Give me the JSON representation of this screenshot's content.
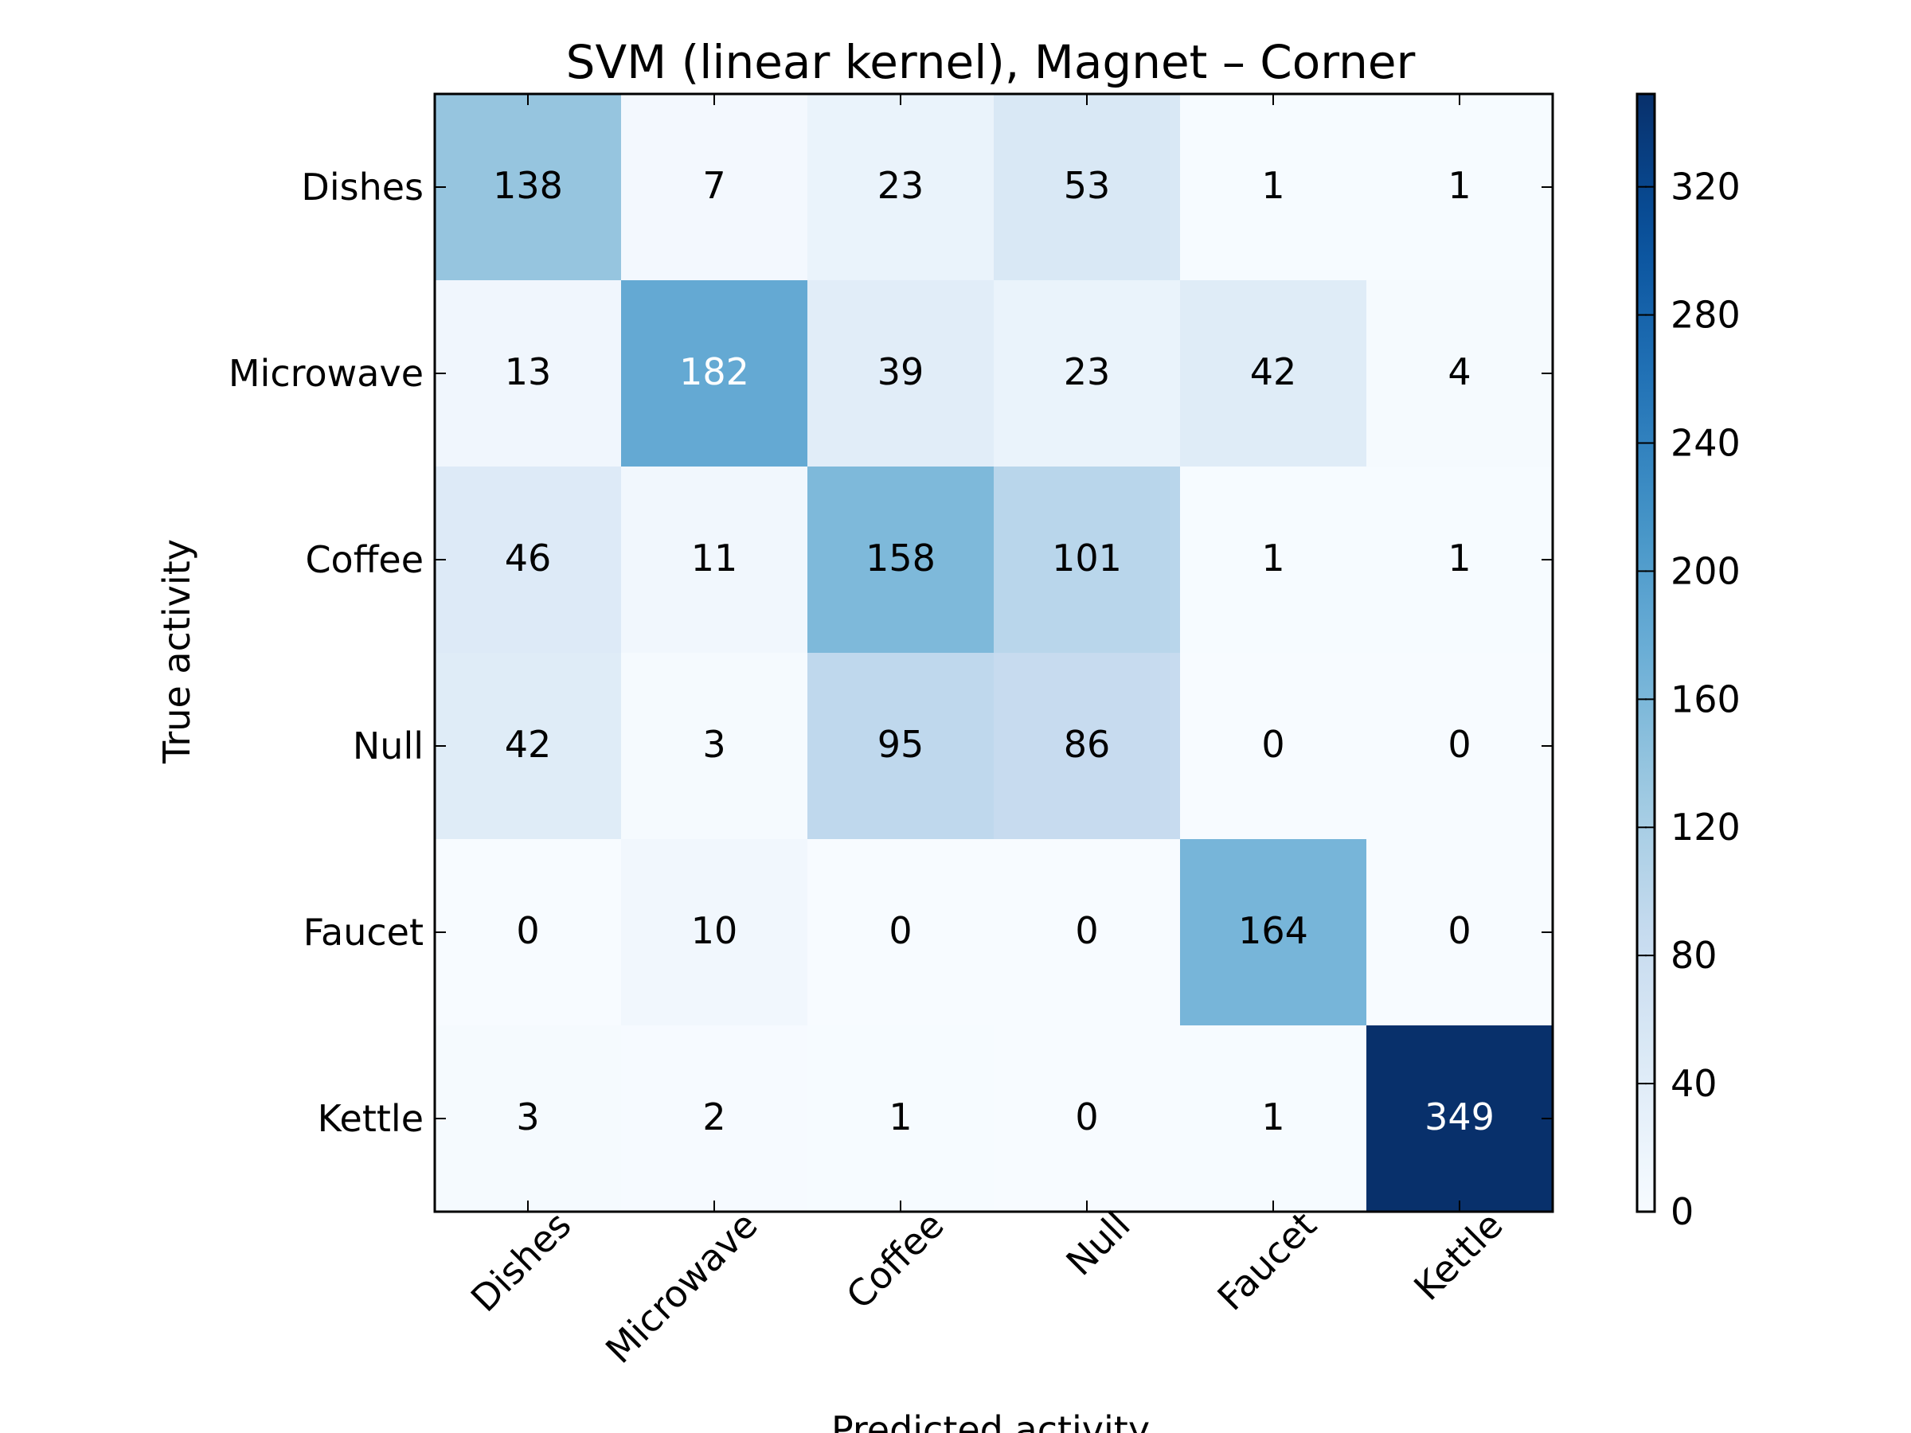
{
  "chart_data": {
    "type": "heatmap",
    "title": "SVM (linear kernel), Magnet – Corner",
    "xlabel": "Predicted activity",
    "ylabel": "True activity",
    "x_categories": [
      "Dishes",
      "Microwave",
      "Coffee",
      "Null",
      "Faucet",
      "Kettle"
    ],
    "y_categories": [
      "Dishes",
      "Microwave",
      "Coffee",
      "Null",
      "Faucet",
      "Kettle"
    ],
    "values": [
      [
        138,
        7,
        23,
        53,
        1,
        1
      ],
      [
        13,
        182,
        39,
        23,
        42,
        4
      ],
      [
        46,
        11,
        158,
        101,
        1,
        1
      ],
      [
        42,
        3,
        95,
        86,
        0,
        0
      ],
      [
        0,
        10,
        0,
        0,
        164,
        0
      ],
      [
        3,
        2,
        1,
        0,
        1,
        349
      ]
    ],
    "colormap": "Blues",
    "color_range": [
      0,
      349
    ],
    "colorbar_ticks": [
      0,
      40,
      80,
      120,
      160,
      200,
      240,
      280,
      320
    ],
    "colors": {
      "low": "#f7fbff",
      "high": "#08306b",
      "text_dark": "#000000",
      "text_light": "#ffffff"
    }
  }
}
